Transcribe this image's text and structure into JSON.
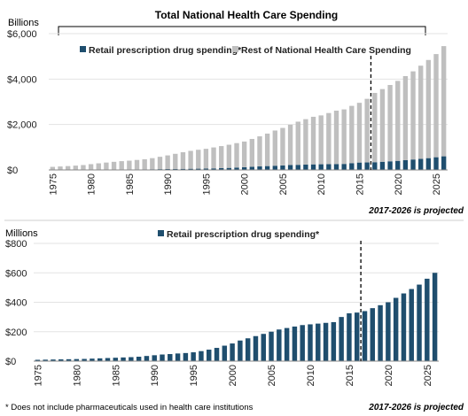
{
  "footnote": "* Does not include pharmaceuticals used in health care institutions",
  "chart_data": [
    {
      "type": "bar",
      "title": "Total  National Health Care Spending",
      "unit_label": "Billions",
      "projection_note": "2017-2026 is projected",
      "stacked": true,
      "ylim": [
        0,
        6000
      ],
      "yticks": [
        0,
        2000,
        4000,
        6000
      ],
      "ytick_labels": [
        "$0",
        "$2,000",
        "$4,000",
        "$6,000"
      ],
      "xtick_labels": [
        "1975",
        "1980",
        "1985",
        "1990",
        "1995",
        "2000",
        "2005",
        "2010",
        "2015",
        "2020",
        "2025"
      ],
      "legend_position": "top",
      "projection_start": 2017,
      "categories": [
        1975,
        1976,
        1977,
        1978,
        1979,
        1980,
        1981,
        1982,
        1983,
        1984,
        1985,
        1986,
        1987,
        1988,
        1989,
        1990,
        1991,
        1992,
        1993,
        1994,
        1995,
        1996,
        1997,
        1998,
        1999,
        2000,
        2001,
        2002,
        2003,
        2004,
        2005,
        2006,
        2007,
        2008,
        2009,
        2010,
        2011,
        2012,
        2013,
        2014,
        2015,
        2016,
        2017,
        2018,
        2019,
        2020,
        2021,
        2022,
        2023,
        2024,
        2025,
        2026
      ],
      "series": [
        {
          "name": "Retail prescription drug spending*",
          "color": "#1f4e6e",
          "values": [
            9,
            10,
            11,
            12,
            13,
            14,
            15,
            17,
            19,
            21,
            23,
            25,
            27,
            30,
            35,
            40,
            45,
            48,
            52,
            55,
            60,
            68,
            78,
            90,
            105,
            120,
            140,
            155,
            170,
            185,
            200,
            215,
            225,
            235,
            245,
            250,
            255,
            260,
            265,
            300,
            325,
            330,
            340,
            360,
            380,
            400,
            430,
            460,
            490,
            520,
            560,
            600
          ]
        },
        {
          "name": "Rest of National Health Care Spending",
          "color": "#bfbfbf",
          "values": [
            126,
            143,
            159,
            178,
            202,
            241,
            276,
            308,
            338,
            365,
            385,
            415,
            445,
            488,
            544,
            600,
            665,
            732,
            788,
            833,
            870,
            922,
            972,
            1020,
            1075,
            1130,
            1225,
            1325,
            1430,
            1550,
            1650,
            1775,
            1900,
            2000,
            2095,
            2150,
            2250,
            2350,
            2400,
            2520,
            2630,
            2800,
            3050,
            3200,
            3360,
            3520,
            3700,
            3880,
            4100,
            4320,
            4540,
            4850
          ]
        }
      ]
    },
    {
      "type": "bar",
      "unit_label": "Millions",
      "projection_note": "2017-2026 is projected",
      "ylim": [
        0,
        800
      ],
      "yticks": [
        0,
        200,
        400,
        600,
        800
      ],
      "ytick_labels": [
        "$0",
        "$200",
        "$400",
        "$600",
        "$800"
      ],
      "xtick_labels": [
        "1975",
        "1980",
        "1985",
        "1990",
        "1995",
        "2000",
        "2005",
        "2010",
        "2015",
        "2020",
        "2025"
      ],
      "legend_position": "top",
      "projection_start": 2017,
      "categories": [
        1975,
        1976,
        1977,
        1978,
        1979,
        1980,
        1981,
        1982,
        1983,
        1984,
        1985,
        1986,
        1987,
        1988,
        1989,
        1990,
        1991,
        1992,
        1993,
        1994,
        1995,
        1996,
        1997,
        1998,
        1999,
        2000,
        2001,
        2002,
        2003,
        2004,
        2005,
        2006,
        2007,
        2008,
        2009,
        2010,
        2011,
        2012,
        2013,
        2014,
        2015,
        2016,
        2017,
        2018,
        2019,
        2020,
        2021,
        2022,
        2023,
        2024,
        2025,
        2026
      ],
      "series": [
        {
          "name": "Retail prescription drug spending*",
          "color": "#1f4e6e",
          "values": [
            9,
            10,
            11,
            12,
            13,
            14,
            15,
            17,
            19,
            21,
            23,
            25,
            27,
            30,
            35,
            40,
            45,
            48,
            52,
            55,
            60,
            68,
            78,
            90,
            105,
            120,
            140,
            155,
            170,
            185,
            200,
            215,
            225,
            235,
            245,
            250,
            255,
            260,
            265,
            300,
            325,
            330,
            340,
            360,
            380,
            400,
            430,
            460,
            490,
            520,
            560,
            600
          ]
        }
      ]
    }
  ]
}
